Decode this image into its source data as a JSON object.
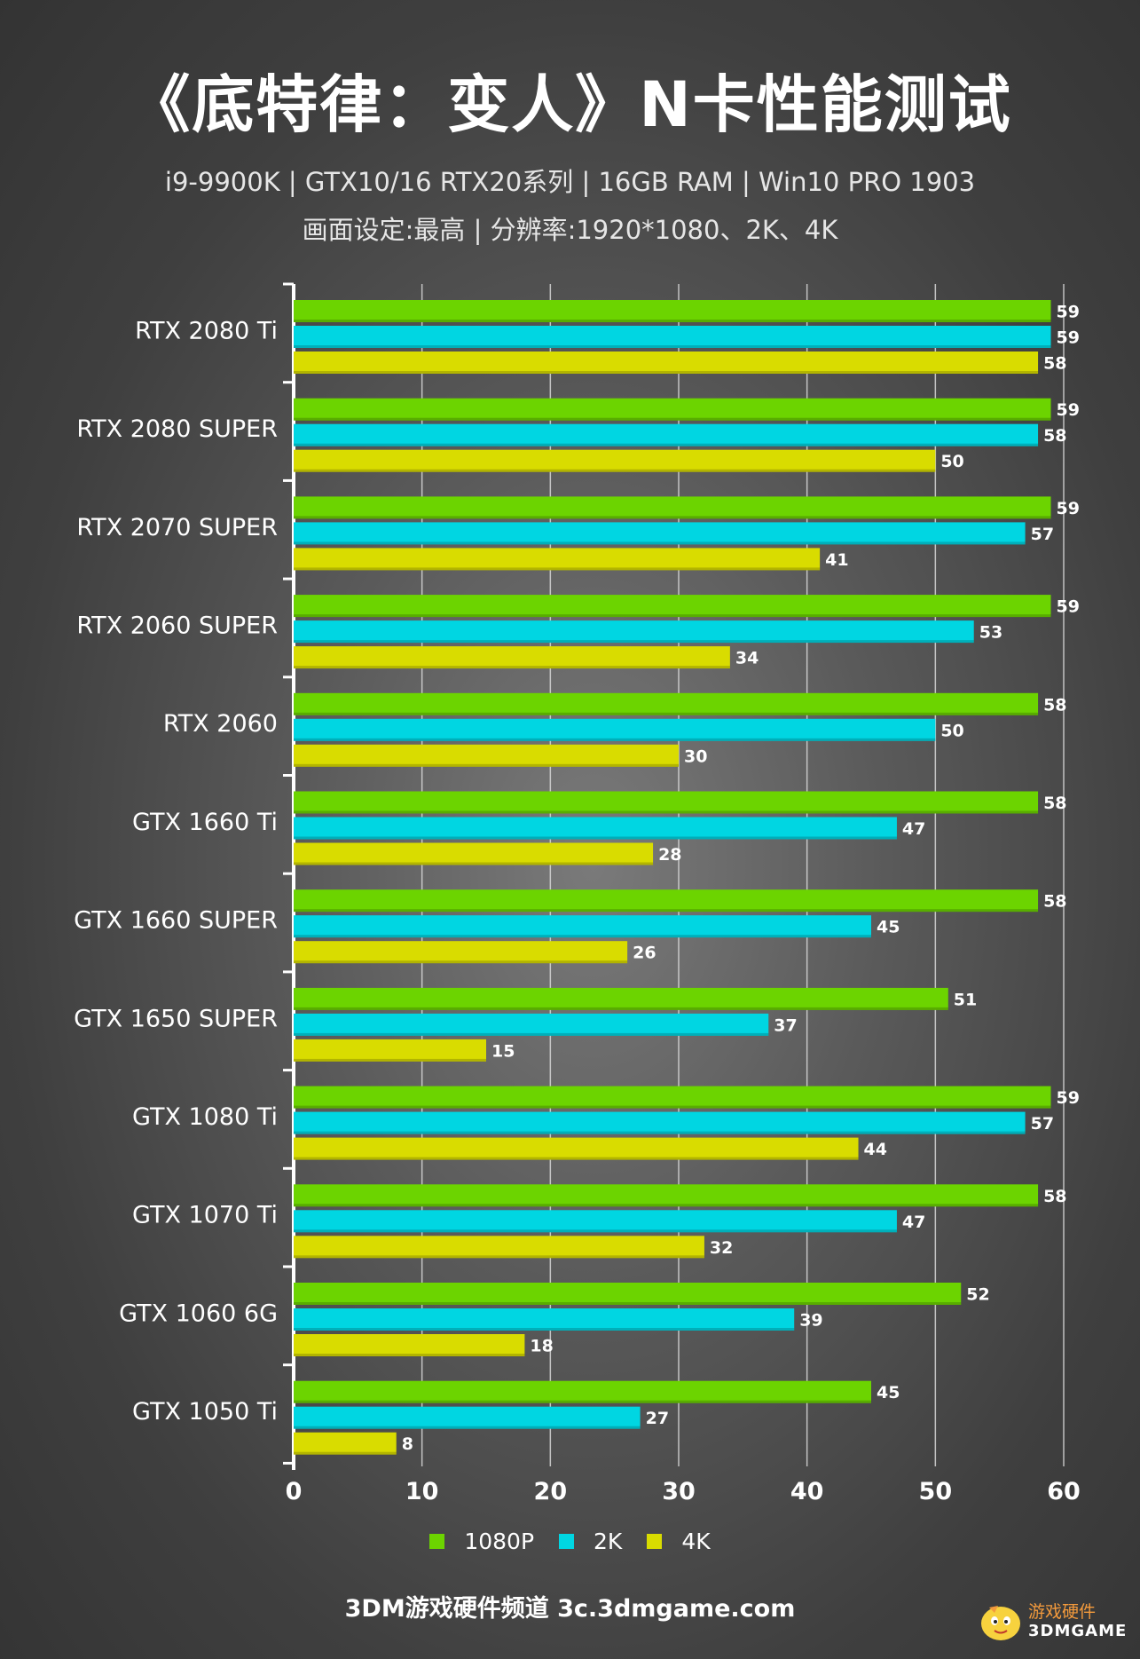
{
  "header": {
    "title": "《底特律：变人》N卡性能测试",
    "subtitle_line1": "i9-9900K | GTX10/16 RTX20系列 | 16GB RAM | Win10 PRO 1903",
    "subtitle_line2": "画面设定:最高 | 分辨率:1920*1080、2K、4K"
  },
  "footer": {
    "text": "3DM游戏硬件频道 3c.3dmgame.com"
  },
  "watermark": {
    "line1": "游戏硬件",
    "line2": "3DMGAME"
  },
  "legend": [
    {
      "label": "1080P",
      "color": "#6cd400"
    },
    {
      "label": "2K",
      "color": "#00d6e2"
    },
    {
      "label": "4K",
      "color": "#d9dc00"
    }
  ],
  "chart_data": {
    "type": "bar",
    "orientation": "horizontal",
    "categories": [
      "RTX 2080 Ti",
      "RTX 2080 SUPER",
      "RTX 2070 SUPER",
      "RTX 2060 SUPER",
      "RTX 2060",
      "GTX 1660 Ti",
      "GTX 1660 SUPER",
      "GTX 1650 SUPER",
      "GTX 1080 Ti",
      "GTX 1070 Ti",
      "GTX 1060 6G",
      "GTX 1050 Ti"
    ],
    "series": [
      {
        "name": "1080P",
        "color": "#6cd400",
        "values": [
          59,
          59,
          59,
          59,
          58,
          58,
          58,
          51,
          59,
          58,
          52,
          45
        ]
      },
      {
        "name": "2K",
        "color": "#00d6e2",
        "values": [
          59,
          58,
          57,
          53,
          50,
          47,
          45,
          37,
          57,
          47,
          39,
          27
        ]
      },
      {
        "name": "4K",
        "color": "#d9dc00",
        "values": [
          58,
          50,
          41,
          34,
          30,
          28,
          26,
          15,
          44,
          32,
          18,
          8
        ]
      }
    ],
    "xlim": [
      0,
      60
    ],
    "xticks": [
      0,
      10,
      20,
      30,
      40,
      50,
      60
    ],
    "grid": true,
    "legend_position": "bottom"
  }
}
